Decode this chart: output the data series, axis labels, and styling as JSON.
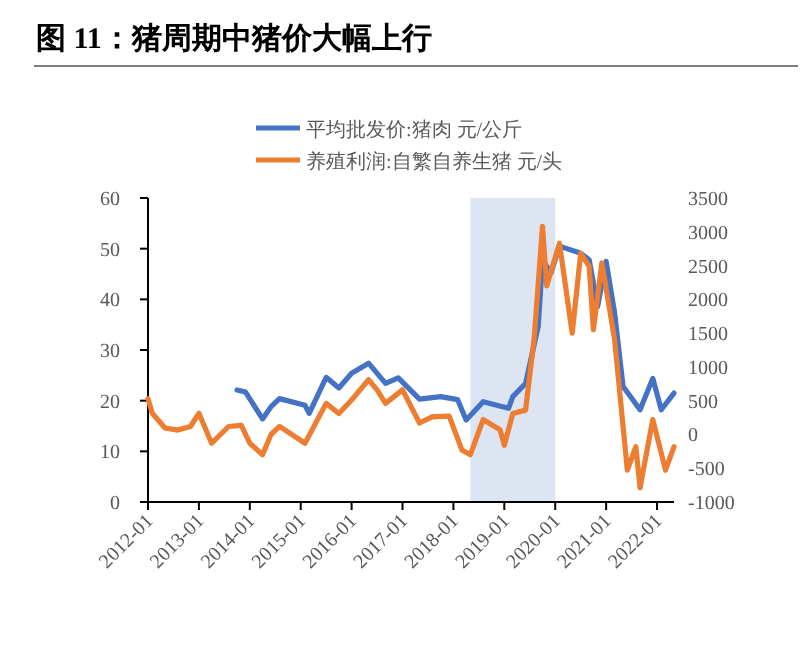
{
  "chart_data": {
    "type": "line",
    "title": "图 11：猪周期中猪价大幅上行",
    "xlim": [
      "2012-01",
      "2022-05"
    ],
    "xticks": [
      "2012-01",
      "2013-01",
      "2014-01",
      "2015-01",
      "2016-01",
      "2017-01",
      "2018-01",
      "2019-01",
      "2020-01",
      "2021-01",
      "2022-01"
    ],
    "ylim": [
      0,
      60
    ],
    "yticks": [
      0,
      10,
      20,
      30,
      40,
      50,
      60
    ],
    "y2lim": [
      -1000,
      3500
    ],
    "y2ticks": [
      -1000,
      -500,
      0,
      500,
      1000,
      1500,
      2000,
      2500,
      3000,
      3500
    ],
    "grid": false,
    "legend": "top",
    "marker": "none",
    "line_style": "solid",
    "bands": [
      {
        "axis": "x",
        "from": "2018-05",
        "to": "2020-01",
        "color": "#dde4f2"
      }
    ],
    "series": [
      {
        "name": "平均批发价:猪肉 元/公斤",
        "color": "#4472c4",
        "x": [
          "2013-10",
          "2013-12",
          "2014-04",
          "2014-06",
          "2014-08",
          "2015-02",
          "2015-03",
          "2015-07",
          "2015-10",
          "2016-01",
          "2016-05",
          "2016-09",
          "2016-12",
          "2017-05",
          "2017-10",
          "2018-02",
          "2018-04",
          "2018-08",
          "2019-02",
          "2019-03",
          "2019-06",
          "2019-09",
          "2019-10",
          "2019-12",
          "2020-02",
          "2020-07",
          "2020-09",
          "2020-11",
          "2021-01",
          "2021-03",
          "2021-05",
          "2021-09",
          "2021-12",
          "2022-02",
          "2022-05"
        ],
        "values": [
          22.1,
          21.7,
          16.4,
          18.8,
          20.4,
          19.1,
          17.5,
          24.6,
          22.5,
          25.4,
          27.4,
          23.4,
          24.5,
          20.3,
          20.8,
          20.2,
          16.2,
          19.8,
          18.5,
          20.8,
          23.4,
          34.7,
          47.8,
          45.2,
          50.5,
          49.1,
          47.8,
          38.6,
          47.5,
          37.3,
          22.8,
          18.2,
          24.4,
          18.2,
          21.5
        ]
      },
      {
        "name": "养殖利润:自繁自养生猪 元/头",
        "color": "#ed7d31",
        "axis": "y2",
        "x": [
          "2012-01",
          "2012-02",
          "2012-05",
          "2012-08",
          "2012-11",
          "2013-01",
          "2013-04",
          "2013-08",
          "2013-11",
          "2014-01",
          "2014-04",
          "2014-06",
          "2014-08",
          "2015-02",
          "2015-07",
          "2015-10",
          "2016-01",
          "2016-05",
          "2016-07",
          "2016-09",
          "2017-01",
          "2017-05",
          "2017-08",
          "2017-12",
          "2018-03",
          "2018-05",
          "2018-08",
          "2018-12",
          "2019-01",
          "2019-03",
          "2019-06",
          "2019-08",
          "2019-10",
          "2019-11",
          "2020-02",
          "2020-05",
          "2020-07",
          "2020-09",
          "2020-10",
          "2020-12",
          "2021-03",
          "2021-06",
          "2021-08",
          "2021-09",
          "2021-12",
          "2022-03",
          "2022-05"
        ],
        "values": [
          530,
          313,
          95,
          65,
          118,
          313,
          -130,
          118,
          133,
          -130,
          -300,
          0,
          120,
          -130,
          460,
          310,
          510,
          810,
          660,
          460,
          660,
          170,
          260,
          270,
          -230,
          -300,
          220,
          70,
          -160,
          310,
          360,
          1400,
          3080,
          2200,
          2830,
          1500,
          2680,
          2490,
          1550,
          2540,
          1400,
          -530,
          -180,
          -790,
          220,
          -530,
          -180
        ]
      }
    ]
  }
}
